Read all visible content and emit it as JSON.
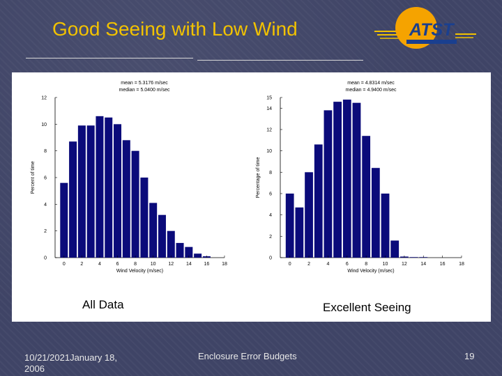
{
  "slide": {
    "title": "Good Seeing with Low Wind",
    "footer_date": "10/21/2021January 18, 2006",
    "footer_center": "Enclosure Error Budgets",
    "page_number": "19"
  },
  "logo": {
    "text": "ATST",
    "colors": {
      "orange": "#f5a300",
      "blue": "#1a3f8f",
      "gold": "#f2c200"
    }
  },
  "captions": {
    "left": "All Data",
    "right": "Excellent Seeing"
  },
  "colors": {
    "bar": "#0b0b7a",
    "title": "#f2c200",
    "background": "#3f4466"
  },
  "chart_data": [
    {
      "type": "bar",
      "annotations": [
        "mean = 5.3176 m/sec",
        "median = 5.0400 m/sec"
      ],
      "xlabel": "Wind Velocity (m/sec)",
      "ylabel": "Percent of time",
      "xlim": [
        -1,
        18
      ],
      "ylim": [
        0,
        12
      ],
      "xticks": [
        0,
        2,
        4,
        6,
        8,
        10,
        12,
        14,
        16,
        18
      ],
      "yticks": [
        0,
        2,
        4,
        6,
        8,
        10,
        12
      ],
      "x": [
        0,
        1,
        2,
        3,
        4,
        5,
        6,
        7,
        8,
        9,
        10,
        11,
        12,
        13,
        14,
        15,
        16
      ],
      "values": [
        5.6,
        8.7,
        9.9,
        9.9,
        10.6,
        10.5,
        10.0,
        8.8,
        8.0,
        6.0,
        4.1,
        3.2,
        2.0,
        1.1,
        0.8,
        0.3,
        0.1
      ]
    },
    {
      "type": "bar",
      "annotations": [
        "mean = 4.8314 m/sec",
        "median = 4.9400 m/sec"
      ],
      "xlabel": "Wind Velocity (m/sec)",
      "ylabel": "Percentage of time",
      "xlim": [
        -1,
        18
      ],
      "ylim": [
        0,
        15
      ],
      "xticks": [
        0,
        2,
        4,
        6,
        8,
        10,
        12,
        14,
        16,
        18
      ],
      "yticks": [
        0,
        2,
        4,
        6,
        8,
        10,
        12,
        14,
        15
      ],
      "x": [
        0,
        1,
        2,
        3,
        4,
        5,
        6,
        7,
        8,
        9,
        10,
        11,
        12,
        13,
        14,
        15
      ],
      "values": [
        6.0,
        4.7,
        8.0,
        10.6,
        13.8,
        14.6,
        14.8,
        14.5,
        11.4,
        8.4,
        6.0,
        1.6,
        0.1,
        0.05,
        0.05,
        0.0
      ]
    }
  ]
}
